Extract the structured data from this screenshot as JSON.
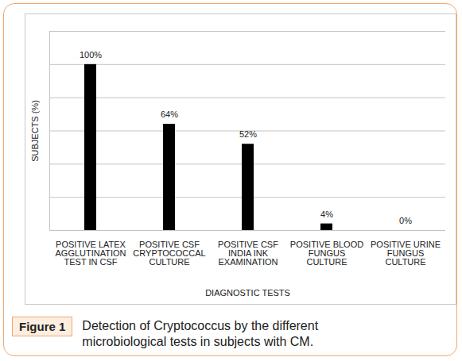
{
  "chart_data": {
    "type": "bar",
    "figure_label": "Figure 1",
    "caption": "Detection of Cryptococcus by the different microbiological tests in subjects with CM.",
    "x_label": "DIAGNOSTIC TESTS",
    "y_label": "SUBJECTS (%)",
    "categories": [
      "POSITIVE LATEX\nAGGLUTINATION\nTEST IN CSF",
      "POSITIVE CSF\nCRYPTOCOCCAL\nCULTURE",
      "POSITIVE CSF\nINDIA INK\nEXAMINATION",
      "POSITIVE BLOOD\nFUNGUS\nCULTURE",
      "POSITIVE URINE\nFUNGUS\nCULTURE"
    ],
    "values": [
      100,
      64,
      52,
      4,
      0
    ],
    "value_labels": [
      "100%",
      "64%",
      "52%",
      "4%",
      "0%"
    ],
    "color": "#000000",
    "ylim": [
      0,
      120
    ],
    "yticks": [
      0,
      20,
      40,
      60,
      80,
      100,
      120
    ],
    "grid": true,
    "data_labels": true,
    "tick_labels": "x"
  }
}
